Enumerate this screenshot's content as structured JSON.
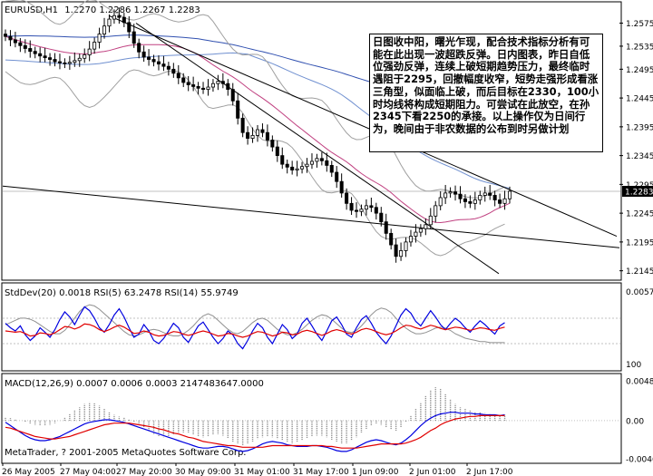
{
  "window": {
    "symbol_title": "EURUSD,H1"
  },
  "chart_data": [
    {
      "type": "candlestick",
      "ohlc_header": "1.2270 1.2286 1.2267 1.2283",
      "y_ticks": [
        "1.2575",
        "1.2535",
        "1.2495",
        "1.2445",
        "1.2395",
        "1.2345",
        "1.2295",
        "1.2245",
        "1.2195",
        "1.2145"
      ],
      "last_price": "1.2283",
      "ylim": [
        1.2135,
        1.259
      ],
      "x_ticks": [
        "26 May 2005",
        "27 May 04:00",
        "27 May 20:00",
        "30 May 09:00",
        "31 May 01:00",
        "31 May 17:00",
        "1 Jun 09:00",
        "2 Jun 01:00",
        "2 Jun 17:00"
      ],
      "series": [
        {
          "close": [
            1.2552,
            1.2546,
            1.2541,
            1.2536,
            1.2531,
            1.2526,
            1.2522,
            1.2518,
            1.2515,
            1.2512,
            1.2508,
            1.2506,
            1.2505,
            1.2507,
            1.251,
            1.2514,
            1.252,
            1.253,
            1.2542,
            1.2556,
            1.257,
            1.2582,
            1.2588,
            1.2585,
            1.2576,
            1.256,
            1.254,
            1.2525,
            1.2516,
            1.2512,
            1.2508,
            1.2504,
            1.25,
            1.2495,
            1.2488,
            1.248,
            1.2472,
            1.2468,
            1.2465,
            1.2462,
            1.246,
            1.2464,
            1.247,
            1.2474,
            1.247,
            1.246,
            1.244,
            1.241,
            1.2385,
            1.2375,
            1.238,
            1.239,
            1.2385,
            1.2372,
            1.236,
            1.2345,
            1.233,
            1.2325,
            1.232,
            1.2322,
            1.2326,
            1.233,
            1.2335,
            1.234,
            1.2336,
            1.2328,
            1.2316,
            1.23,
            1.228,
            1.2262,
            1.225,
            1.2248,
            1.2252,
            1.2258,
            1.2255,
            1.2245,
            1.223,
            1.221,
            1.219,
            1.217,
            1.218,
            1.2195,
            1.2205,
            1.2212,
            1.2218,
            1.2225,
            1.224,
            1.2258,
            1.2272,
            1.228,
            1.2282,
            1.2278,
            1.227,
            1.2265,
            1.2262,
            1.2268,
            1.2276,
            1.228,
            1.2276,
            1.2268,
            1.2262,
            1.227,
            1.2283
          ]
        }
      ]
    },
    {
      "type": "line",
      "header": "StdDev(20) 0.0018 RSI(5) 63.2478 RSI(14) 55.9749",
      "y_ticks": [
        "0.0057",
        "100"
      ],
      "series": [
        {
          "name": "RSI(5)",
          "values": [
            62,
            55,
            50,
            58,
            44,
            35,
            42,
            55,
            48,
            40,
            52,
            68,
            80,
            72,
            60,
            75,
            88,
            82,
            70,
            55,
            48,
            60,
            75,
            85,
            72,
            55,
            40,
            45,
            60,
            50,
            35,
            30,
            38,
            50,
            62,
            55,
            40,
            32,
            45,
            58,
            64,
            52,
            40,
            30,
            38,
            50,
            44,
            30,
            22,
            35,
            50,
            62,
            55,
            40,
            30,
            45,
            60,
            52,
            38,
            45,
            62,
            70,
            58,
            45,
            35,
            50,
            66,
            72,
            60,
            45,
            40,
            55,
            68,
            74,
            62,
            48,
            38,
            30,
            42,
            58,
            75,
            85,
            78,
            65,
            58,
            70,
            82,
            72,
            60,
            52,
            62,
            70,
            64,
            55,
            48,
            58,
            66,
            60,
            52,
            45,
            58,
            63
          ]
        },
        {
          "name": "RSI(14)",
          "values": [
            50,
            49,
            48,
            49,
            46,
            42,
            43,
            47,
            46,
            44,
            47,
            52,
            57,
            56,
            53,
            56,
            61,
            60,
            57,
            52,
            49,
            52,
            56,
            59,
            56,
            51,
            46,
            47,
            50,
            48,
            44,
            42,
            43,
            46,
            49,
            48,
            45,
            43,
            45,
            48,
            50,
            48,
            45,
            42,
            43,
            46,
            45,
            42,
            40,
            42,
            46,
            49,
            48,
            45,
            42,
            44,
            48,
            47,
            44,
            45,
            49,
            51,
            49,
            46,
            43,
            46,
            50,
            52,
            50,
            47,
            45,
            48,
            52,
            54,
            52,
            49,
            46,
            44,
            46,
            50,
            55,
            59,
            58,
            55,
            53,
            56,
            59,
            57,
            54,
            52,
            54,
            56,
            55,
            53,
            51,
            53,
            55,
            54,
            52,
            51,
            54,
            56
          ]
        },
        {
          "name": "StdDev(20)",
          "values": [
            0.0034,
            0.0036,
            0.0038,
            0.004,
            0.004,
            0.0039,
            0.0037,
            0.0034,
            0.0031,
            0.0028,
            0.0026,
            0.0026,
            0.0029,
            0.0034,
            0.004,
            0.0046,
            0.005,
            0.0052,
            0.0051,
            0.0048,
            0.0044,
            0.004,
            0.0036,
            0.0032,
            0.0028,
            0.0025,
            0.0024,
            0.0025,
            0.0027,
            0.0029,
            0.003,
            0.0029,
            0.0027,
            0.0025,
            0.0024,
            0.0024,
            0.0026,
            0.0029,
            0.0033,
            0.0038,
            0.0042,
            0.0044,
            0.0042,
            0.0038,
            0.0034,
            0.003,
            0.0027,
            0.0026,
            0.0028,
            0.0032,
            0.0036,
            0.0039,
            0.004,
            0.0038,
            0.0034,
            0.003,
            0.0027,
            0.0025,
            0.0025,
            0.0027,
            0.003,
            0.0034,
            0.0038,
            0.0041,
            0.0043,
            0.0042,
            0.0039,
            0.0035,
            0.0031,
            0.0028,
            0.0027,
            0.0029,
            0.0033,
            0.0038,
            0.0043,
            0.0047,
            0.0049,
            0.0048,
            0.0045,
            0.004,
            0.0035,
            0.0031,
            0.0028,
            0.0026,
            0.0026,
            0.0027,
            0.0029,
            0.0031,
            0.0032,
            0.0031,
            0.0029,
            0.0026,
            0.0024,
            0.0022,
            0.0021,
            0.002,
            0.0019,
            0.0019,
            0.0018,
            0.0018,
            0.0018,
            0.0018
          ]
        }
      ]
    },
    {
      "type": "bar",
      "header": "MACD(12,26,9) 0.0007 0.0006 0.0003 2147483647.0000",
      "y_ticks": [
        "0.0048",
        "0.00",
        "-0.0046"
      ],
      "ylim": [
        -0.0048,
        0.005
      ],
      "series": [
        {
          "name": "Histogram",
          "values": [
            0.0004,
            0.0003,
            0.0002,
            0.0,
            -0.0002,
            -0.0004,
            -0.0005,
            -0.0006,
            -0.0006,
            -0.0005,
            -0.0003,
            0.0,
            0.0004,
            0.0008,
            0.0012,
            0.0016,
            0.002,
            0.0022,
            0.0021,
            0.0018,
            0.0014,
            0.001,
            0.0007,
            0.0005,
            0.0004,
            0.0002,
            -0.0001,
            -0.0004,
            -0.0008,
            -0.0012,
            -0.0016,
            -0.0019,
            -0.002,
            -0.0019,
            -0.0017,
            -0.0015,
            -0.0014,
            -0.0015,
            -0.0017,
            -0.0019,
            -0.002,
            -0.0019,
            -0.0017,
            -0.0016,
            -0.0018,
            -0.0021,
            -0.0025,
            -0.0028,
            -0.003,
            -0.0028,
            -0.0025,
            -0.0022,
            -0.002,
            -0.0019,
            -0.002,
            -0.0022,
            -0.0024,
            -0.0026,
            -0.0027,
            -0.0026,
            -0.0024,
            -0.0021,
            -0.0019,
            -0.0018,
            -0.0018,
            -0.002,
            -0.0023,
            -0.0026,
            -0.0028,
            -0.0027,
            -0.0024,
            -0.002,
            -0.0015,
            -0.001,
            -0.0006,
            -0.0004,
            -0.0005,
            -0.0008,
            -0.0011,
            -0.0012,
            -0.0008,
            -0.0002,
            0.0006,
            0.0014,
            0.0022,
            0.003,
            0.0036,
            0.004,
            0.0038,
            0.0032,
            0.0026,
            0.002,
            0.0016,
            0.0014,
            0.0012,
            0.0011,
            0.001,
            0.0009,
            0.0008,
            0.0007,
            0.0006,
            0.0007
          ]
        },
        {
          "name": "MACD",
          "values": [
            -0.0002,
            -0.0006,
            -0.001,
            -0.0014,
            -0.0018,
            -0.0021,
            -0.0023,
            -0.0024,
            -0.0024,
            -0.0023,
            -0.0021,
            -0.0019,
            -0.0016,
            -0.0013,
            -0.001,
            -0.0007,
            -0.0004,
            -0.0002,
            -0.0001,
            0.0,
            0.0001,
            0.0001,
            0.0,
            -0.0001,
            -0.0002,
            -0.0004,
            -0.0006,
            -0.0008,
            -0.001,
            -0.0012,
            -0.0014,
            -0.0016,
            -0.0018,
            -0.002,
            -0.0022,
            -0.0024,
            -0.0026,
            -0.0028,
            -0.003,
            -0.0032,
            -0.0033,
            -0.0033,
            -0.0032,
            -0.0031,
            -0.0031,
            -0.0032,
            -0.0034,
            -0.0036,
            -0.0037,
            -0.0036,
            -0.0034,
            -0.0031,
            -0.0028,
            -0.0026,
            -0.0025,
            -0.0026,
            -0.0027,
            -0.0029,
            -0.003,
            -0.0031,
            -0.0031,
            -0.0031,
            -0.003,
            -0.003,
            -0.0031,
            -0.0032,
            -0.0034,
            -0.0036,
            -0.0037,
            -0.0037,
            -0.0035,
            -0.0032,
            -0.0029,
            -0.0026,
            -0.0024,
            -0.0023,
            -0.0024,
            -0.0026,
            -0.0028,
            -0.0029,
            -0.0027,
            -0.0023,
            -0.0018,
            -0.0012,
            -0.0006,
            -0.0001,
            0.0003,
            0.0006,
            0.0008,
            0.0009,
            0.001,
            0.001,
            0.0009,
            0.0009,
            0.0009,
            0.0008,
            0.0008,
            0.0007,
            0.0007,
            0.0007,
            0.0006,
            0.0007
          ]
        },
        {
          "name": "Signal",
          "values": [
            -0.0008,
            -0.0009,
            -0.0011,
            -0.0013,
            -0.0015,
            -0.0017,
            -0.0019,
            -0.002,
            -0.0021,
            -0.0022,
            -0.0022,
            -0.0021,
            -0.002,
            -0.0019,
            -0.0017,
            -0.0015,
            -0.0013,
            -0.0011,
            -0.0009,
            -0.0007,
            -0.0005,
            -0.0004,
            -0.0003,
            -0.0003,
            -0.0003,
            -0.0003,
            -0.0004,
            -0.0005,
            -0.0006,
            -0.0007,
            -0.0008,
            -0.001,
            -0.0011,
            -0.0013,
            -0.0015,
            -0.0016,
            -0.0018,
            -0.002,
            -0.0021,
            -0.0023,
            -0.0025,
            -0.0026,
            -0.0027,
            -0.0028,
            -0.0029,
            -0.003,
            -0.003,
            -0.0031,
            -0.0032,
            -0.0032,
            -0.0032,
            -0.0032,
            -0.0032,
            -0.0031,
            -0.003,
            -0.003,
            -0.003,
            -0.003,
            -0.003,
            -0.003,
            -0.003,
            -0.003,
            -0.003,
            -0.003,
            -0.003,
            -0.0031,
            -0.0031,
            -0.0032,
            -0.0033,
            -0.0033,
            -0.0033,
            -0.0033,
            -0.0032,
            -0.0031,
            -0.003,
            -0.0029,
            -0.0028,
            -0.0028,
            -0.0028,
            -0.0028,
            -0.0028,
            -0.0027,
            -0.0025,
            -0.0023,
            -0.002,
            -0.0016,
            -0.0012,
            -0.0009,
            -0.0005,
            -0.0002,
            0.0,
            0.0002,
            0.0003,
            0.0004,
            0.0005,
            0.0005,
            0.0006,
            0.0006,
            0.0006,
            0.0006,
            0.0006,
            0.0006
          ]
        }
      ]
    }
  ],
  "annotation_text": "日图收中阳，曙光乍现，配合技术指标分析有可能在此出现一波超跌反弹。日内图表，昨日自低位强劲反弹，连续上破短期趋势压力，最终临时遇阻于2295，回撤幅度收窄，短势走强形成看涨三角型，似面临上破，而后目标在2330，100小时均线将构成短期阻力。可尝试在此放空，在孙2345下看2250的承接。以上操作仅为日间行为，晚间由于非农数据的公布到时另做计划",
  "copyright": "MetaTrader, ? 2001-2005 MetaQuotes Software Corp.",
  "colors": {
    "candle": "#000000",
    "grid": "#c0c0c0",
    "ma_blue": "#3050b0",
    "ma_light": "#7090d0",
    "ma_pink": "#c04080",
    "bollinger": "#a0a0a0",
    "rsi5": "#0000e0",
    "rsi14": "#e00000",
    "macd_main": "#0000e0",
    "macd_signal": "#e00000",
    "hist": "#808080"
  }
}
